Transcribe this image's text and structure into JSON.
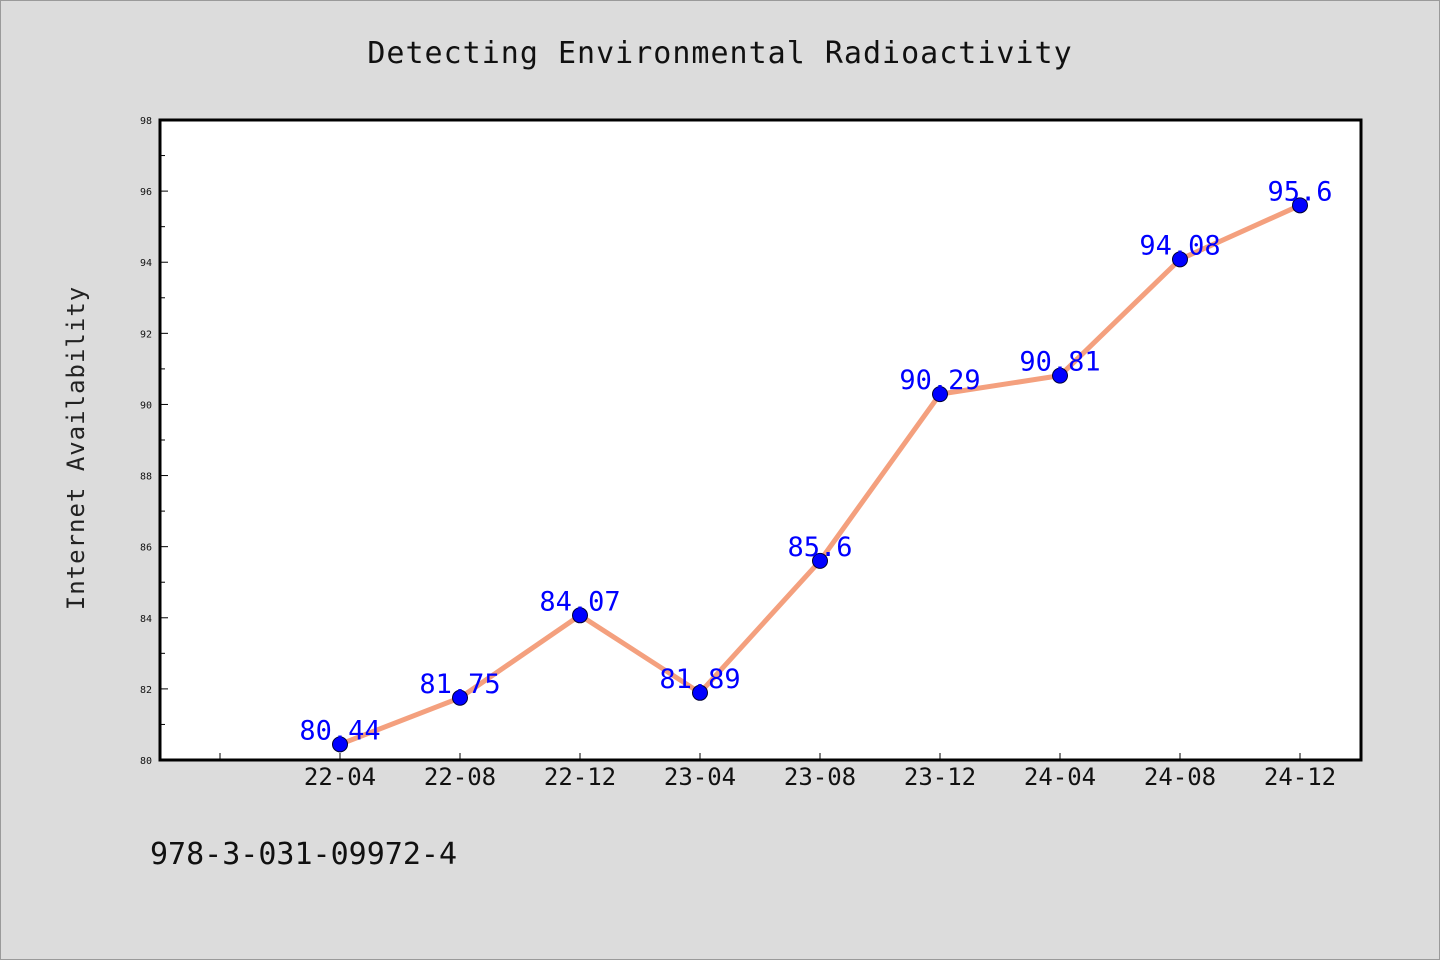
{
  "chart_data": {
    "type": "line",
    "title": "Detecting Environmental Radioactivity",
    "xlabel": "",
    "ylabel": "Internet Availability",
    "categories": [
      "22-04",
      "22-08",
      "22-12",
      "23-04",
      "23-08",
      "23-12",
      "24-04",
      "24-08",
      "24-12"
    ],
    "series": [
      {
        "values": [
          80.44,
          81.75,
          84.07,
          81.89,
          85.6,
          90.29,
          90.81,
          94.08,
          95.6
        ],
        "labels": [
          "80.44",
          "81.75",
          "84.07",
          "81.89",
          "85.6",
          "90.29",
          "90.81",
          "94.08",
          "95.6"
        ]
      }
    ],
    "ylim": [
      80,
      98
    ],
    "yticks": [
      "80",
      "82",
      "84",
      "86",
      "88",
      "90",
      "92",
      "94",
      "96",
      "98"
    ],
    "grid": false,
    "legend": "none",
    "colors": {
      "line": "#f4a07e",
      "marker": "#0000ff",
      "data_label": "#0000ff",
      "background": "#dcdcdc"
    }
  },
  "footer_text": "978-3-031-09972-4"
}
